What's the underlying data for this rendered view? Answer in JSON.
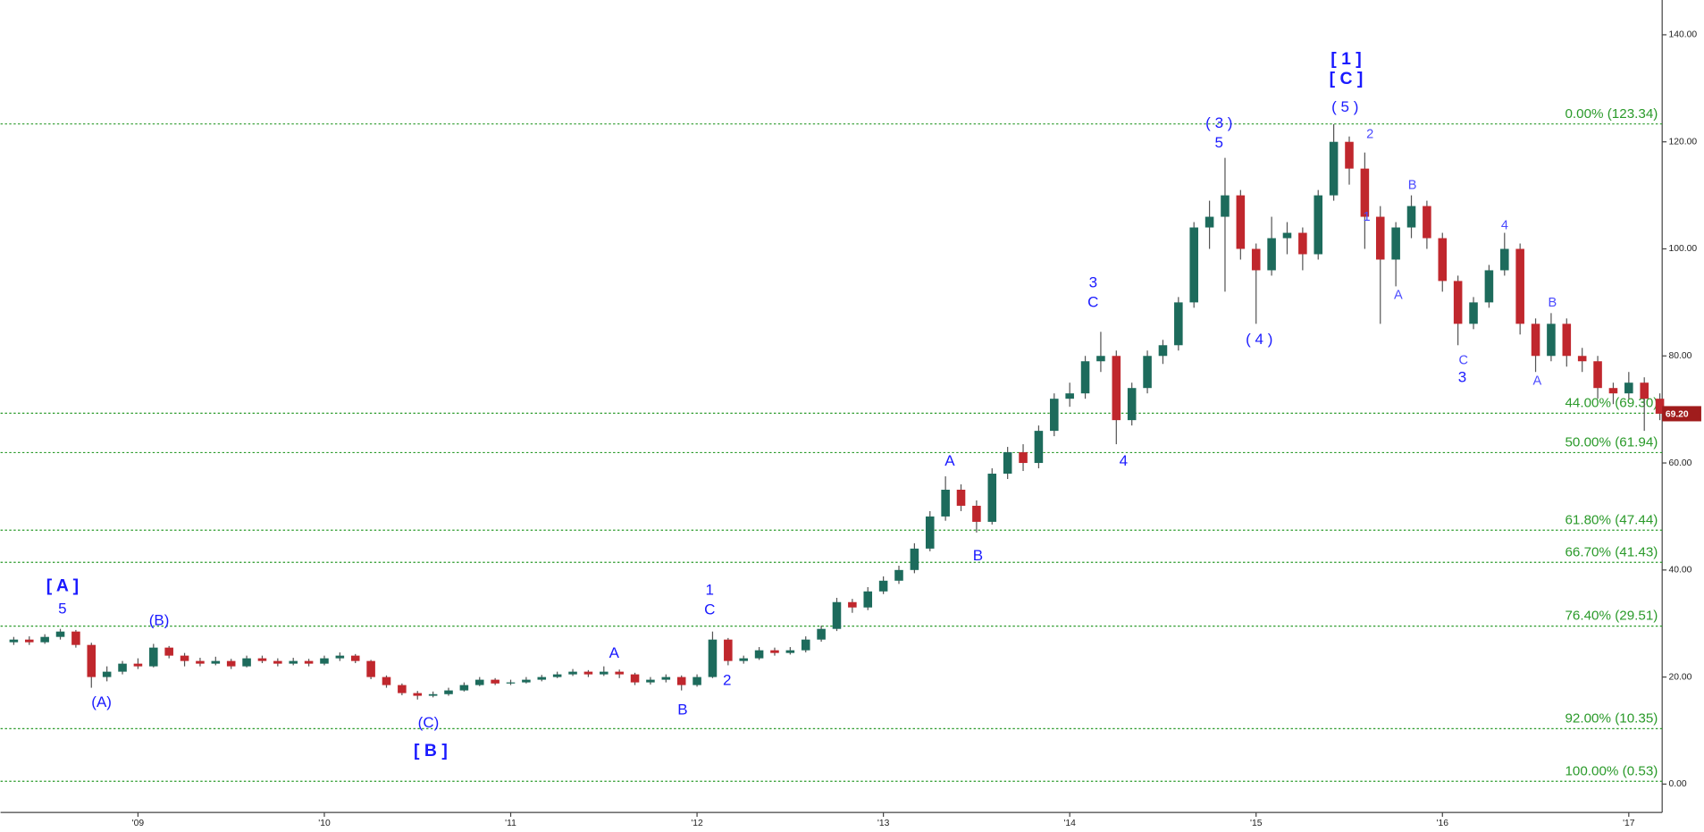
{
  "chart_data": {
    "type": "candlestick",
    "categories": [
      null,
      null,
      null,
      null,
      null,
      null,
      null,
      null,
      "'09",
      null,
      null,
      null,
      null,
      null,
      null,
      null,
      null,
      null,
      null,
      null,
      "'10",
      null,
      null,
      null,
      null,
      null,
      null,
      null,
      null,
      null,
      null,
      null,
      "'11",
      null,
      null,
      null,
      null,
      null,
      null,
      null,
      null,
      null,
      null,
      null,
      "'12",
      null,
      null,
      null,
      null,
      null,
      null,
      null,
      null,
      null,
      null,
      null,
      "'13",
      null,
      null,
      null,
      null,
      null,
      null,
      null,
      null,
      null,
      null,
      null,
      "'14",
      null,
      null,
      null,
      null,
      null,
      null,
      null,
      null,
      null,
      null,
      null,
      "'15",
      null,
      null,
      null,
      null,
      null,
      null,
      null,
      null,
      null,
      null,
      null,
      "'16",
      null,
      null,
      null,
      null,
      null,
      null,
      null,
      null,
      null,
      null,
      null,
      "'17",
      null,
      null
    ],
    "open": [
      26.5,
      27,
      26.5,
      27.5,
      28.5,
      26,
      20,
      21,
      22.5,
      22,
      25.5,
      24,
      23,
      22.5,
      23,
      22,
      23.5,
      23,
      22.5,
      23,
      22.5,
      23.5,
      24,
      23,
      20,
      18.5,
      17,
      16.5,
      16.8,
      17.5,
      18.5,
      19.5,
      18.8,
      19,
      19.5,
      20,
      20.5,
      21,
      20.5,
      21,
      20.5,
      19,
      19.5,
      20,
      18.5,
      20,
      27,
      23,
      23.5,
      25,
      24.5,
      25,
      27,
      29,
      34,
      33,
      36,
      38,
      40,
      44,
      50,
      55,
      52,
      49,
      58,
      62,
      60,
      66,
      72,
      73,
      79,
      80,
      68,
      74,
      80,
      82,
      90,
      104,
      106,
      110,
      100,
      96,
      102,
      103,
      99,
      110,
      120,
      115,
      106,
      98,
      104,
      108,
      102,
      94,
      86,
      90,
      96,
      100,
      86,
      80,
      86,
      80,
      79,
      74,
      73,
      75,
      72
    ],
    "high": [
      27.5,
      27.6,
      28,
      29,
      28.8,
      26.4,
      22,
      23,
      23.5,
      26.2,
      25.8,
      24.5,
      23.6,
      23.8,
      23.4,
      24,
      24,
      23.5,
      23.6,
      23.4,
      24,
      24.6,
      24.3,
      23.2,
      20.3,
      18.8,
      17.4,
      17.3,
      18,
      19,
      20,
      19.8,
      19.5,
      20,
      20.4,
      21,
      21.5,
      21.3,
      22,
      21.4,
      20.8,
      20,
      20.5,
      20.3,
      20.5,
      28.5,
      27.3,
      24,
      25.6,
      25.5,
      25.6,
      27.6,
      29.6,
      34.8,
      34.6,
      36.8,
      38.8,
      40.8,
      45,
      51,
      57.5,
      56,
      53,
      59,
      63,
      63.5,
      67,
      73,
      75,
      80,
      84.5,
      81,
      75,
      81,
      83,
      91,
      105,
      109,
      117,
      111,
      101,
      106,
      105,
      104,
      111,
      123.3,
      121,
      118,
      108,
      105,
      110,
      109,
      103,
      95,
      91,
      97,
      103,
      101,
      87,
      88,
      87,
      81.5,
      80,
      75,
      77,
      76,
      73
    ],
    "low": [
      26,
      26,
      26.2,
      27,
      25.5,
      18,
      19.2,
      20.5,
      21.5,
      21.8,
      23.5,
      22,
      22,
      22.2,
      21.5,
      21.8,
      22.6,
      22,
      22.2,
      22,
      22.2,
      23,
      22.6,
      19.6,
      18,
      16.6,
      15.8,
      16.2,
      16.5,
      17.3,
      18.3,
      18.5,
      18.5,
      18.8,
      19.2,
      19.8,
      20.2,
      20,
      20.2,
      19.8,
      18.5,
      18.6,
      19,
      17.5,
      18.2,
      19.8,
      22.2,
      22.5,
      23.2,
      24,
      24.2,
      24.6,
      26.6,
      28.6,
      32,
      32.5,
      35.5,
      37.4,
      39.4,
      43.5,
      49.2,
      51,
      47,
      48.5,
      57,
      58.5,
      59,
      65,
      70.5,
      72,
      77,
      63.5,
      67,
      73,
      78.5,
      81,
      89,
      100,
      92,
      98,
      86,
      95,
      99,
      96,
      98,
      109,
      112,
      100,
      86,
      93,
      102,
      100,
      92,
      82,
      85,
      89,
      95,
      84,
      77,
      79,
      78,
      77,
      72,
      71,
      72,
      66,
      68
    ],
    "close": [
      27,
      26.5,
      27.5,
      28.5,
      26,
      20,
      21,
      22.5,
      22,
      25.5,
      24,
      23,
      22.5,
      23,
      22,
      23.5,
      23,
      22.5,
      23,
      22.5,
      23.5,
      24,
      23,
      20,
      18.5,
      17,
      16.5,
      16.8,
      17.5,
      18.5,
      19.5,
      18.8,
      19,
      19.5,
      20,
      20.5,
      21,
      20.5,
      21,
      20.5,
      19,
      19.5,
      20,
      18.5,
      20,
      27,
      23,
      23.5,
      25,
      24.5,
      25,
      27,
      29,
      34,
      33,
      36,
      38,
      40,
      44,
      50,
      55,
      52,
      49,
      58,
      62,
      60,
      66,
      72,
      73,
      79,
      80,
      68,
      74,
      80,
      82,
      90,
      104,
      106,
      110,
      100,
      96,
      102,
      103,
      99,
      110,
      120,
      115,
      106,
      98,
      104,
      108,
      102,
      94,
      86,
      90,
      96,
      100,
      86,
      80,
      86,
      80,
      79,
      74,
      73,
      75,
      72,
      69.2
    ],
    "up_color": "#1d6b5c",
    "down_color": "#c0272d",
    "ylim": [
      -5.3,
      146.5
    ],
    "yticks": [
      {
        "value": 0,
        "label": "0.00"
      },
      {
        "value": 20,
        "label": "20.00"
      },
      {
        "value": 40,
        "label": "40.00"
      },
      {
        "value": 60,
        "label": "60.00"
      },
      {
        "value": 80,
        "label": "80.00"
      },
      {
        "value": 100,
        "label": "100.00"
      },
      {
        "value": 120,
        "label": "120.00"
      },
      {
        "value": 140,
        "label": "140.00"
      }
    ],
    "levels_color": "#2a9a2a",
    "levels": [
      {
        "value": 123.34,
        "label": "0.00% (123.34)"
      },
      {
        "value": 69.3,
        "label": "44.00% (69.30)"
      },
      {
        "value": 61.94,
        "label": "50.00% (61.94)"
      },
      {
        "value": 47.44,
        "label": "61.80% (47.44)"
      },
      {
        "value": 41.43,
        "label": "66.70% (41.43)"
      },
      {
        "value": 29.51,
        "label": "76.40% (29.51)"
      },
      {
        "value": 10.35,
        "label": "92.00% (10.35)"
      },
      {
        "value": 0.53,
        "label": "100.00% (0.53)"
      }
    ],
    "last_price": {
      "value": 69.2,
      "label": "69.20",
      "color": "#a01c1c"
    },
    "annotations": [
      "[ A ]",
      "5",
      "(A)",
      "(B)",
      "(C)",
      "[ B ]",
      "A",
      "B",
      "1",
      "C",
      "2",
      "A",
      "B",
      "3",
      "C",
      "4",
      "( 3 )",
      "5",
      "( 4 )",
      "[ 1 ]",
      "[ C ]",
      "( 5 )",
      "2",
      "1",
      "A",
      "B",
      "C",
      "3",
      "4",
      "A",
      "B"
    ]
  }
}
